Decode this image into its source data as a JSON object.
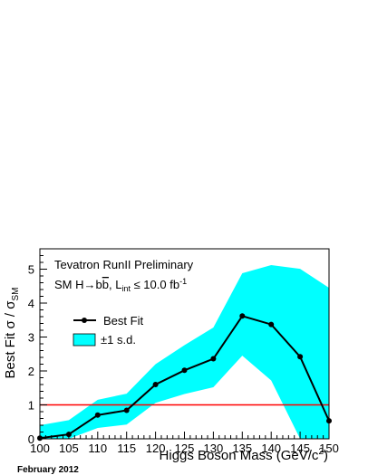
{
  "chart_data": {
    "type": "line",
    "title": "",
    "xlabel": "Higgs Boson Mass (GeV/c²)",
    "xlabel_main": "Higgs Boson Mass (GeV/c",
    "xlabel_sup": "2",
    "xlabel_close": ")",
    "ylabel": "Best Fit σ / σSM",
    "ylabel_main": "Best Fit σ / σ",
    "ylabel_sub": "SM",
    "xlim": [
      100,
      150
    ],
    "ylim": [
      0,
      5.6
    ],
    "x_ticks": [
      "100",
      "105",
      "110",
      "115",
      "120",
      "125",
      "130",
      "135",
      "140",
      "145",
      "150"
    ],
    "y_ticks": [
      "0",
      "1",
      "2",
      "3",
      "4",
      "5"
    ],
    "x_tick_values": [
      100,
      105,
      110,
      115,
      120,
      125,
      130,
      135,
      140,
      145,
      150
    ],
    "y_tick_values": [
      0,
      1,
      2,
      3,
      4,
      5
    ],
    "x": [
      100,
      105,
      110,
      115,
      120,
      125,
      130,
      135,
      140,
      145,
      150
    ],
    "series": [
      {
        "name": "Best Fit",
        "color": "#000000",
        "values": [
          0.02,
          0.13,
          0.7,
          0.84,
          1.6,
          2.02,
          2.36,
          3.62,
          3.37,
          2.42,
          0.53
        ]
      }
    ],
    "band": {
      "name": "±1 s.d.",
      "color": "#00ffff",
      "lower": [
        0.0,
        0.0,
        0.32,
        0.42,
        1.06,
        1.32,
        1.52,
        2.45,
        1.72,
        0.0,
        0.0
      ],
      "upper": [
        0.4,
        0.55,
        1.15,
        1.33,
        2.2,
        2.76,
        3.28,
        4.88,
        5.12,
        5.01,
        4.45
      ]
    },
    "reference_line": {
      "y": 1,
      "color": "#ff0000"
    },
    "legend_position": "top-left",
    "grid": false
  },
  "annotations": {
    "experiment": "Tevatron RunII Preliminary",
    "process_prefix": "SM H",
    "process_arrow": "→",
    "process_b": "b",
    "process_bbar": "b",
    "process_sep": ", L",
    "process_lumi_sub": "int",
    "process_lumi_value": " ≤ 10.0 fb",
    "process_lumi_sup": "-1"
  },
  "footer": {
    "date": "February 2012"
  }
}
